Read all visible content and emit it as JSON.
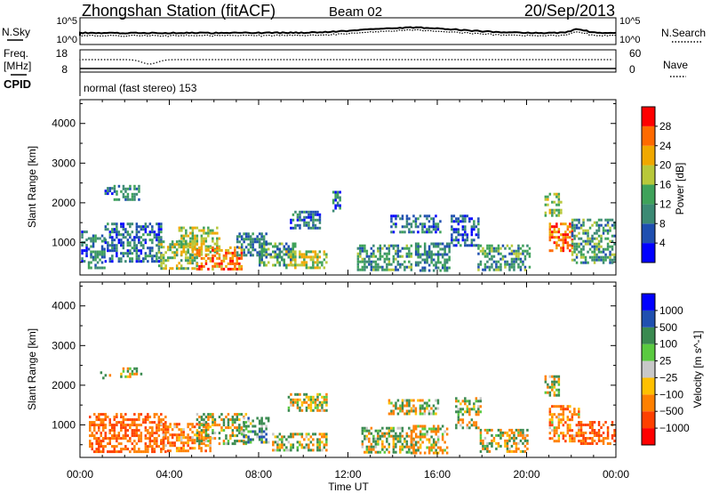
{
  "header": {
    "station": "Zhongshan Station (fitACF)",
    "beam": "Beam 02",
    "date": "20/Sep/2013"
  },
  "top_panel": {
    "left_label": "N.Sky",
    "left_ticks": [
      "10^5",
      "10^0"
    ],
    "right_label": "N.Search",
    "right_ticks": [
      "10^5",
      "10^0"
    ]
  },
  "freq_panel": {
    "left_label_1": "Freq.",
    "left_label_2": "[MHz]",
    "left_ticks": [
      "18",
      "8"
    ],
    "right_label": "Nave",
    "right_ticks": [
      "60",
      "0"
    ],
    "cpid_label": "CPID",
    "cpid_text": "normal (fast stereo) 153"
  },
  "chart_data": [
    {
      "type": "heatmap",
      "title": "",
      "ylabel": "Slant Range [km]",
      "y_ticks": [
        "4000",
        "3000",
        "2000",
        "1000"
      ],
      "ylim": [
        180,
        4600
      ],
      "xlim_hours": [
        0,
        24
      ],
      "colorbar": {
        "label": "Power [dB]",
        "ticks": [
          "28",
          "24",
          "20",
          "16",
          "12",
          "8",
          "4"
        ],
        "colors": [
          "#0000ff",
          "#1f4fb0",
          "#3c8a74",
          "#3fa25a",
          "#b8c83a",
          "#f0a800",
          "#ff6a00",
          "#ff0000"
        ]
      },
      "patches": [
        {
          "t0": 0.05,
          "t1": 0.25,
          "r0": 520,
          "r1": 1300,
          "value": 6
        },
        {
          "t0": 0.35,
          "t1": 1.1,
          "r0": 380,
          "r1": 1200,
          "value": 10
        },
        {
          "t0": 1.0,
          "t1": 1.4,
          "r0": 2200,
          "r1": 2400,
          "value": 6
        },
        {
          "t0": 1.5,
          "t1": 2.6,
          "r0": 2100,
          "r1": 2450,
          "value": 10
        },
        {
          "t0": 1.1,
          "t1": 3.6,
          "r0": 500,
          "r1": 1500,
          "value": 8
        },
        {
          "t0": 3.5,
          "t1": 5.2,
          "r0": 350,
          "r1": 1050,
          "value": 16
        },
        {
          "t0": 4.4,
          "t1": 6.2,
          "r0": 700,
          "r1": 1400,
          "value": 18
        },
        {
          "t0": 5.2,
          "t1": 7.2,
          "r0": 350,
          "r1": 900,
          "value": 24
        },
        {
          "t0": 7.0,
          "t1": 8.3,
          "r0": 700,
          "r1": 1250,
          "value": 10
        },
        {
          "t0": 8.0,
          "t1": 9.6,
          "r0": 400,
          "r1": 1000,
          "value": 12
        },
        {
          "t0": 9.4,
          "t1": 10.7,
          "r0": 1350,
          "r1": 1800,
          "value": 8
        },
        {
          "t0": 9.2,
          "t1": 11.0,
          "r0": 350,
          "r1": 800,
          "value": 18
        },
        {
          "t0": 11.3,
          "t1": 11.6,
          "r0": 1800,
          "r1": 2300,
          "value": 8
        },
        {
          "t0": 12.4,
          "t1": 14.8,
          "r0": 300,
          "r1": 950,
          "value": 12
        },
        {
          "t0": 13.9,
          "t1": 16.1,
          "r0": 1250,
          "r1": 1700,
          "value": 8
        },
        {
          "t0": 15.0,
          "t1": 16.5,
          "r0": 300,
          "r1": 1000,
          "value": 10
        },
        {
          "t0": 16.6,
          "t1": 17.8,
          "r0": 900,
          "r1": 1700,
          "value": 8
        },
        {
          "t0": 17.8,
          "t1": 20.1,
          "r0": 300,
          "r1": 950,
          "value": 12
        },
        {
          "t0": 20.8,
          "t1": 21.5,
          "r0": 1700,
          "r1": 2250,
          "value": 16
        },
        {
          "t0": 21.0,
          "t1": 22.0,
          "r0": 800,
          "r1": 1500,
          "value": 26
        },
        {
          "t0": 22.0,
          "t1": 23.9,
          "r0": 500,
          "r1": 1600,
          "value": 12
        }
      ]
    },
    {
      "type": "heatmap",
      "title": "",
      "ylabel": "Slant Range [km]",
      "y_ticks": [
        "4000",
        "3000",
        "2000",
        "1000"
      ],
      "ylim": [
        180,
        4600
      ],
      "xlim_hours": [
        0,
        24
      ],
      "x_ticks": [
        "00:00",
        "04:00",
        "08:00",
        "12:00",
        "16:00",
        "20:00",
        "00:00"
      ],
      "xlabel": "Time UT",
      "colorbar": {
        "label": "Velocity [m s^-1]",
        "ticks": [
          "1000",
          "500",
          "100",
          "25",
          "−25",
          "−100",
          "−500",
          "−1000"
        ],
        "colors": [
          "#ff0000",
          "#ff4000",
          "#ff8000",
          "#ffc000",
          "#c8c8c8",
          "#5aca40",
          "#3a8a50",
          "#2050b0",
          "#0000ff"
        ]
      },
      "patches": [
        {
          "t0": 0.4,
          "t1": 3.8,
          "r0": 350,
          "r1": 1300,
          "value": -450
        },
        {
          "t0": 1.8,
          "t1": 2.7,
          "r0": 2200,
          "r1": 2450,
          "value": 0
        },
        {
          "t0": 0.9,
          "t1": 1.3,
          "r0": 2150,
          "r1": 2350,
          "value": -60
        },
        {
          "t0": 3.6,
          "t1": 5.8,
          "r0": 350,
          "r1": 1050,
          "value": -300
        },
        {
          "t0": 5.2,
          "t1": 7.4,
          "r0": 500,
          "r1": 1300,
          "value": 60
        },
        {
          "t0": 7.2,
          "t1": 8.4,
          "r0": 550,
          "r1": 1200,
          "value": 300
        },
        {
          "t0": 8.6,
          "t1": 11.0,
          "r0": 350,
          "r1": 800,
          "value": 60
        },
        {
          "t0": 9.3,
          "t1": 11.0,
          "r0": 1350,
          "r1": 1800,
          "value": 0
        },
        {
          "t0": 12.6,
          "t1": 14.9,
          "r0": 300,
          "r1": 950,
          "value": 60
        },
        {
          "t0": 13.8,
          "t1": 16.0,
          "r0": 1300,
          "r1": 1650,
          "value": 0
        },
        {
          "t0": 14.8,
          "t1": 16.4,
          "r0": 300,
          "r1": 1000,
          "value": -150
        },
        {
          "t0": 16.8,
          "t1": 17.9,
          "r0": 950,
          "r1": 1700,
          "value": 60
        },
        {
          "t0": 17.9,
          "t1": 20.0,
          "r0": 300,
          "r1": 900,
          "value": -50
        },
        {
          "t0": 20.8,
          "t1": 21.4,
          "r0": 1750,
          "r1": 2250,
          "value": 60
        },
        {
          "t0": 21.0,
          "t1": 22.3,
          "r0": 600,
          "r1": 1500,
          "value": -300
        },
        {
          "t0": 22.3,
          "t1": 23.9,
          "r0": 500,
          "r1": 1100,
          "value": -600
        }
      ]
    }
  ]
}
